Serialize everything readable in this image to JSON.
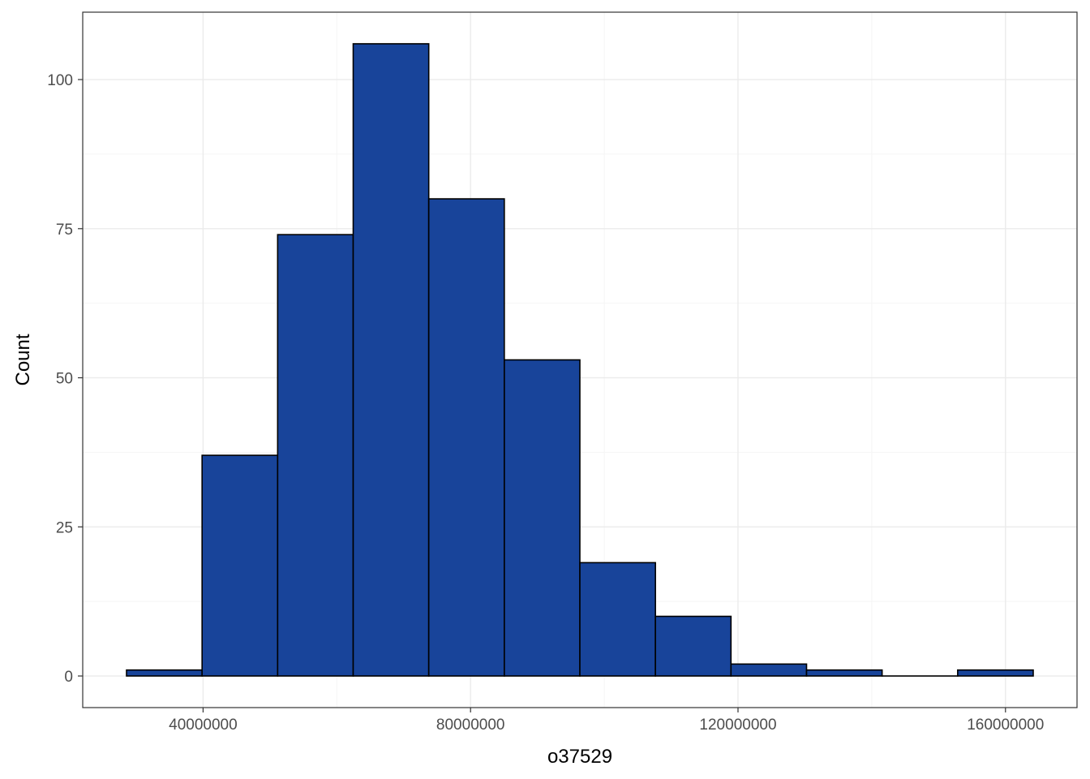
{
  "chart_data": {
    "type": "bar",
    "title": "",
    "xlabel": "o37529",
    "ylabel": "Count",
    "bin_width": 11300000,
    "bins": [
      {
        "x0": 28550000,
        "x1": 39850000,
        "count": 1
      },
      {
        "x0": 39850000,
        "x1": 51150000,
        "count": 37
      },
      {
        "x0": 51150000,
        "x1": 62450000,
        "count": 74
      },
      {
        "x0": 62450000,
        "x1": 73750000,
        "count": 106
      },
      {
        "x0": 73750000,
        "x1": 85050000,
        "count": 80
      },
      {
        "x0": 85050000,
        "x1": 96350000,
        "count": 53
      },
      {
        "x0": 96350000,
        "x1": 107650000,
        "count": 19
      },
      {
        "x0": 107650000,
        "x1": 118950000,
        "count": 10
      },
      {
        "x0": 118950000,
        "x1": 130250000,
        "count": 2
      },
      {
        "x0": 130250000,
        "x1": 141550000,
        "count": 1
      },
      {
        "x0": 141550000,
        "x1": 152850000,
        "count": 0
      },
      {
        "x0": 152850000,
        "x1": 164150000,
        "count": 1
      }
    ],
    "xlim": [
      22000000,
      170700000
    ],
    "ylim": [
      -5.3,
      111.3
    ],
    "x_ticks": [
      40000000,
      80000000,
      120000000,
      160000000
    ],
    "x_tick_labels": [
      "40000000",
      "80000000",
      "120000000",
      "160000000"
    ],
    "y_ticks": [
      0,
      25,
      50,
      75,
      100
    ],
    "y_tick_labels": [
      "0",
      "25",
      "50",
      "75",
      "100"
    ],
    "grid": true,
    "legend": "none",
    "colors": {
      "fill": "#18449A",
      "outline": "#000000",
      "grid_major": "#EBEBEB",
      "grid_minor": "#F5F5F5",
      "panel_border": "#333333"
    }
  }
}
